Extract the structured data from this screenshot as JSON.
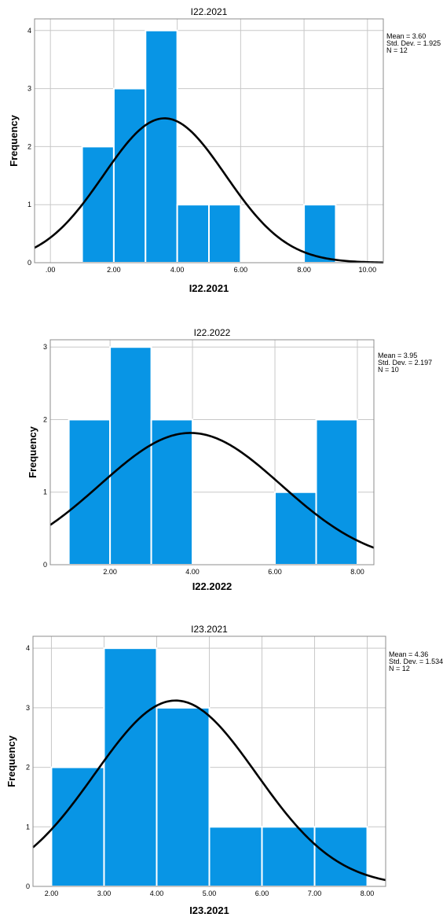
{
  "colors": {
    "bar": "#0895e5",
    "bar_edge": "#ffffff",
    "curve": "#000000",
    "grid": "#c8c8c8",
    "frame": "#8c8c8c"
  },
  "chart_data": [
    {
      "type": "bar",
      "title": "I22.2021",
      "xlabel": "I22.2021",
      "ylabel": "Frequency",
      "xlim": [
        -0.5,
        10.5
      ],
      "ylim": [
        0,
        4.2
      ],
      "x_ticks": [
        0,
        2,
        4,
        6,
        8,
        10
      ],
      "x_tick_labels": [
        ".00",
        "2.00",
        "4.00",
        "6.00",
        "8.00",
        "10.00"
      ],
      "y_ticks": [
        0,
        1,
        2,
        3,
        4
      ],
      "y_tick_labels": [
        "0",
        "1",
        "2",
        "3",
        "4"
      ],
      "bins": [
        {
          "start": 1,
          "end": 2,
          "count": 2
        },
        {
          "start": 2,
          "end": 3,
          "count": 3
        },
        {
          "start": 3,
          "end": 4,
          "count": 4
        },
        {
          "start": 4,
          "end": 5,
          "count": 1
        },
        {
          "start": 5,
          "end": 6,
          "count": 1
        },
        {
          "start": 8,
          "end": 9,
          "count": 1
        }
      ],
      "normal_curve": {
        "mean": 3.6,
        "std": 1.925,
        "n": 12,
        "bin_width": 1
      },
      "stats_lines": [
        "Mean = 3.60",
        "Std. Dev. = 1.925",
        "N = 12"
      ],
      "grid": true,
      "legend": "right"
    },
    {
      "type": "bar",
      "title": "I22.2022",
      "xlabel": "I22.2022",
      "ylabel": "Frequency",
      "xlim": [
        0.55,
        8.4
      ],
      "ylim": [
        0,
        3.1
      ],
      "x_ticks": [
        2,
        4,
        6,
        8
      ],
      "x_tick_labels": [
        "2.00",
        "4.00",
        "6.00",
        "8.00"
      ],
      "y_ticks": [
        0,
        1,
        2,
        3
      ],
      "y_tick_labels": [
        "0",
        "1",
        "2",
        "3"
      ],
      "bins": [
        {
          "start": 1,
          "end": 2,
          "count": 2
        },
        {
          "start": 2,
          "end": 3,
          "count": 3
        },
        {
          "start": 3,
          "end": 4,
          "count": 2
        },
        {
          "start": 6,
          "end": 7,
          "count": 1
        },
        {
          "start": 7,
          "end": 8,
          "count": 2
        }
      ],
      "normal_curve": {
        "mean": 3.95,
        "std": 2.197,
        "n": 10,
        "bin_width": 1
      },
      "stats_lines": [
        "Mean = 3.95",
        "Std. Dev. = 2.197",
        "N = 10"
      ],
      "grid": true,
      "legend": "right"
    },
    {
      "type": "bar",
      "title": "I23.2021",
      "xlabel": "I23.2021",
      "ylabel": "Frequency",
      "xlim": [
        1.65,
        8.35
      ],
      "ylim": [
        0,
        4.2
      ],
      "x_ticks": [
        2,
        3,
        4,
        5,
        6,
        7,
        8
      ],
      "x_tick_labels": [
        "2.00",
        "3.00",
        "4.00",
        "5.00",
        "6.00",
        "7.00",
        "8.00"
      ],
      "y_ticks": [
        0,
        1,
        2,
        3,
        4
      ],
      "y_tick_labels": [
        "0",
        "1",
        "2",
        "3",
        "4"
      ],
      "bins": [
        {
          "start": 2,
          "end": 3,
          "count": 2
        },
        {
          "start": 3,
          "end": 4,
          "count": 4
        },
        {
          "start": 4,
          "end": 5,
          "count": 3
        },
        {
          "start": 5,
          "end": 6,
          "count": 1
        },
        {
          "start": 6,
          "end": 7,
          "count": 1
        },
        {
          "start": 7,
          "end": 8,
          "count": 1
        }
      ],
      "normal_curve": {
        "mean": 4.36,
        "std": 1.534,
        "n": 12,
        "bin_width": 1
      },
      "stats_lines": [
        "Mean = 4.36",
        "Std. Dev. = 1.534",
        "N = 12"
      ],
      "grid": true,
      "legend": "right"
    }
  ]
}
